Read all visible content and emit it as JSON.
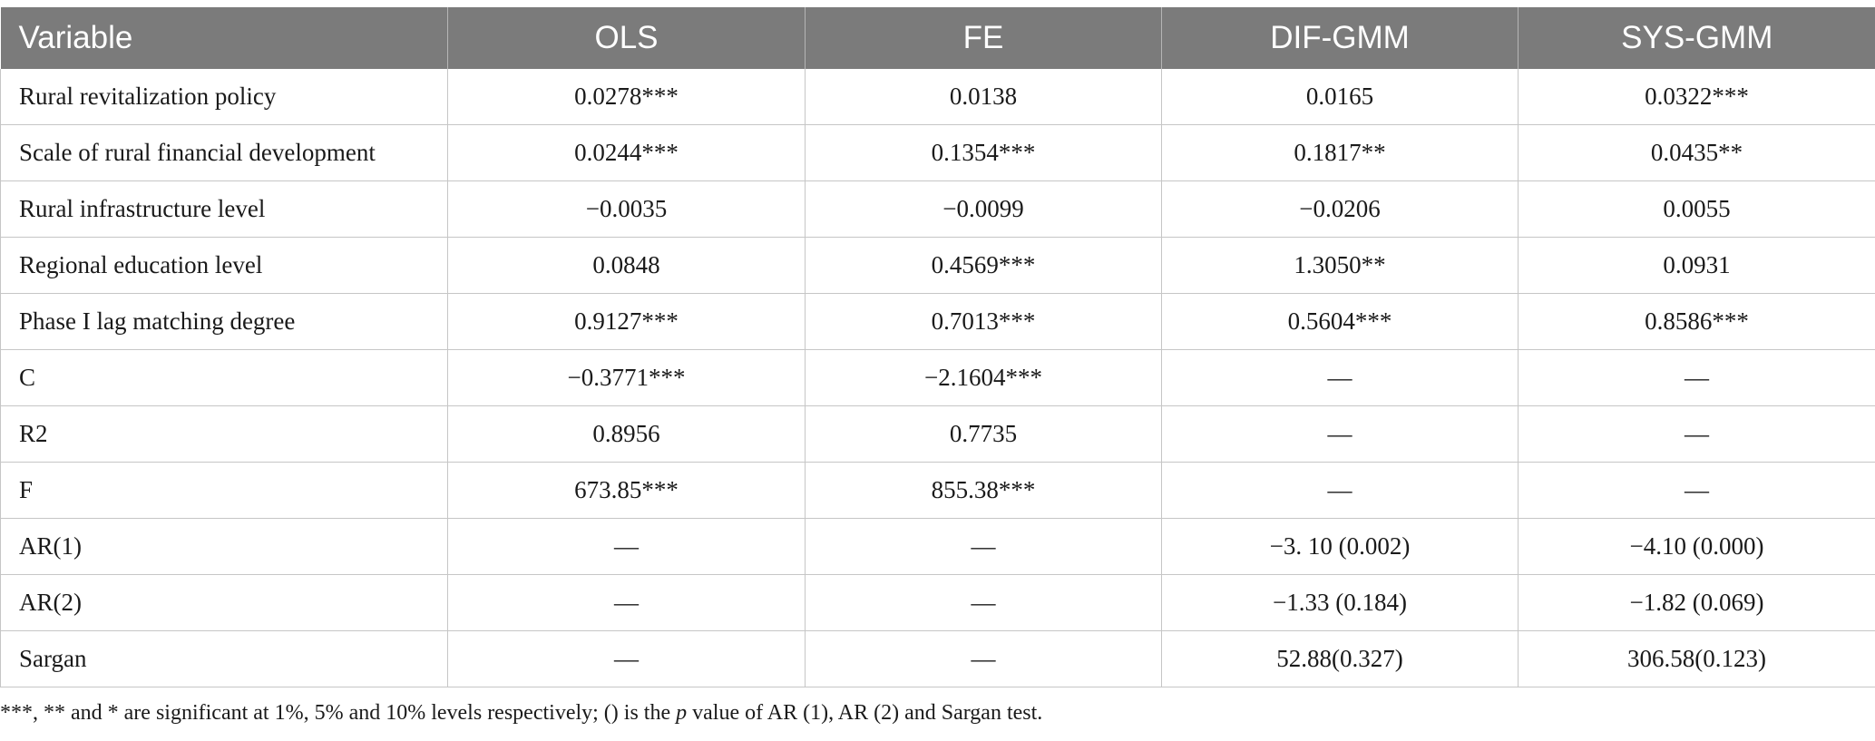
{
  "table": {
    "headers": [
      "Variable",
      "OLS",
      "FE",
      "DIF-GMM",
      "SYS-GMM"
    ],
    "rows": [
      [
        "Rural revitalization policy",
        "0.0278***",
        "0.0138",
        "0.0165",
        "0.0322***"
      ],
      [
        "Scale of rural financial development",
        "0.0244***",
        "0.1354***",
        "0.1817**",
        "0.0435**"
      ],
      [
        "Rural infrastructure level",
        "−0.0035",
        "−0.0099",
        "−0.0206",
        "0.0055"
      ],
      [
        "Regional education level",
        "0.0848",
        "0.4569***",
        "1.3050**",
        "0.0931"
      ],
      [
        "Phase I lag matching degree",
        "0.9127***",
        "0.7013***",
        "0.5604***",
        "0.8586***"
      ],
      [
        "C",
        "−0.3771***",
        "−2.1604***",
        "—",
        "—"
      ],
      [
        "R2",
        "0.8956",
        "0.7735",
        "—",
        "—"
      ],
      [
        "F",
        "673.85***",
        "855.38***",
        "—",
        "—"
      ],
      [
        "AR(1)",
        "—",
        "—",
        "−3. 10 (0.002)",
        "−4.10 (0.000)"
      ],
      [
        "AR(2)",
        "—",
        "—",
        "−1.33 (0.184)",
        "−1.82 (0.069)"
      ],
      [
        "Sargan",
        "—",
        "—",
        "52.88(0.327)",
        "306.58(0.123)"
      ]
    ]
  },
  "note": {
    "before": "***, ** and * are significant at 1%, 5% and 10% levels respectively; () is the ",
    "italic": "p",
    "after": " value of AR (1), AR (2) and Sargan test."
  }
}
